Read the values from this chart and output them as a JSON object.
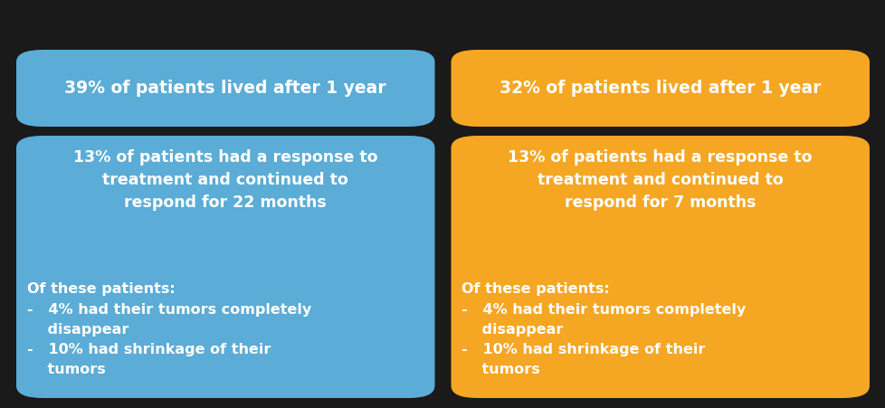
{
  "background_color": "#1a1a1a",
  "blue_color": "#5BACD6",
  "orange_color": "#F5A623",
  "text_color": "#ffffff",
  "top_left_text": "39% of patients lived after 1 year",
  "top_right_text": "32% of patients lived after 1 year",
  "bottom_left_title": "13% of patients had a response to\ntreatment and continued to\nrespond for 22 months",
  "bottom_right_title": "13% of patients had a response to\ntreatment and continued to\nrespond for 7 months",
  "bottom_left_sub": "Of these patients:\n-   4% had their tumors completely\n    disappear\n-   10% had shrinkage of their\n    tumors",
  "bottom_right_sub": "Of these patients:\n-   4% had their tumors completely\n    disappear\n-   10% had shrinkage of their\n    tumors",
  "font_size_top": 13.5,
  "font_size_bottom_title": 12.5,
  "font_size_bottom_sub": 11.5,
  "fig_width": 9.79,
  "fig_height": 4.51,
  "dpi": 100
}
